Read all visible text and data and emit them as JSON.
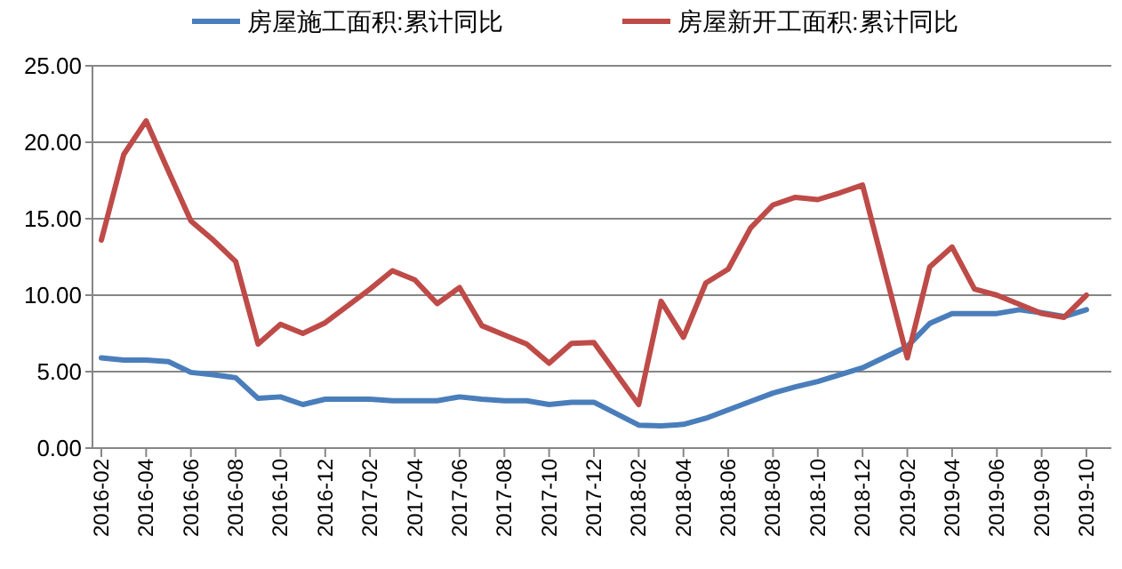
{
  "chart_data": {
    "type": "line",
    "categories": [
      "2016-02",
      null,
      "2016-04",
      null,
      "2016-06",
      null,
      "2016-08",
      null,
      "2016-10",
      null,
      "2016-12",
      null,
      "2017-02",
      null,
      "2017-04",
      null,
      "2017-06",
      null,
      "2017-08",
      null,
      "2017-10",
      null,
      "2017-12",
      null,
      "2018-02",
      null,
      "2018-04",
      null,
      "2018-06",
      null,
      "2018-08",
      null,
      "2018-10",
      null,
      "2018-12",
      null,
      "2019-02",
      null,
      "2019-04",
      null,
      "2019-06",
      null,
      "2019-08",
      null,
      "2019-10"
    ],
    "series": [
      {
        "name": "房屋施工面积:累计同比",
        "color": "#4a7ebb",
        "values": [
          5.9,
          5.75,
          5.75,
          5.65,
          4.95,
          4.8,
          4.6,
          3.25,
          3.35,
          2.85,
          3.2,
          null,
          3.2,
          3.1,
          3.1,
          3.1,
          3.35,
          3.2,
          3.1,
          3.1,
          2.85,
          3.0,
          3.0,
          null,
          1.5,
          1.45,
          1.55,
          1.95,
          2.5,
          3.05,
          3.6,
          4.0,
          4.35,
          4.8,
          5.25,
          null,
          6.65,
          8.15,
          8.8,
          8.8,
          8.8,
          9.05,
          8.85,
          8.6,
          9.05
        ]
      },
      {
        "name": "房屋新开工面积:累计同比",
        "color": "#be4b48",
        "values": [
          13.6,
          19.2,
          21.4,
          18.1,
          14.85,
          13.6,
          12.2,
          6.8,
          8.1,
          7.5,
          8.2,
          null,
          10.4,
          11.6,
          11.0,
          9.45,
          10.5,
          8.0,
          7.4,
          6.8,
          5.55,
          6.85,
          6.9,
          null,
          2.85,
          9.6,
          7.25,
          10.8,
          11.7,
          14.4,
          15.9,
          16.4,
          16.25,
          16.7,
          17.2,
          null,
          5.9,
          11.85,
          13.15,
          10.4,
          10.0,
          9.4,
          8.8,
          8.55,
          10.0
        ]
      }
    ],
    "ylim": [
      0,
      25
    ],
    "yticks": [
      {
        "value": 0,
        "label": "0.00"
      },
      {
        "value": 5,
        "label": "5.00"
      },
      {
        "value": 10,
        "label": "10.00"
      },
      {
        "value": 15,
        "label": "15.00"
      },
      {
        "value": 20,
        "label": "20.00"
      },
      {
        "value": 25,
        "label": "25.00"
      }
    ],
    "grid": "y",
    "legend": "top",
    "marker": "none",
    "line_style": "solid"
  }
}
